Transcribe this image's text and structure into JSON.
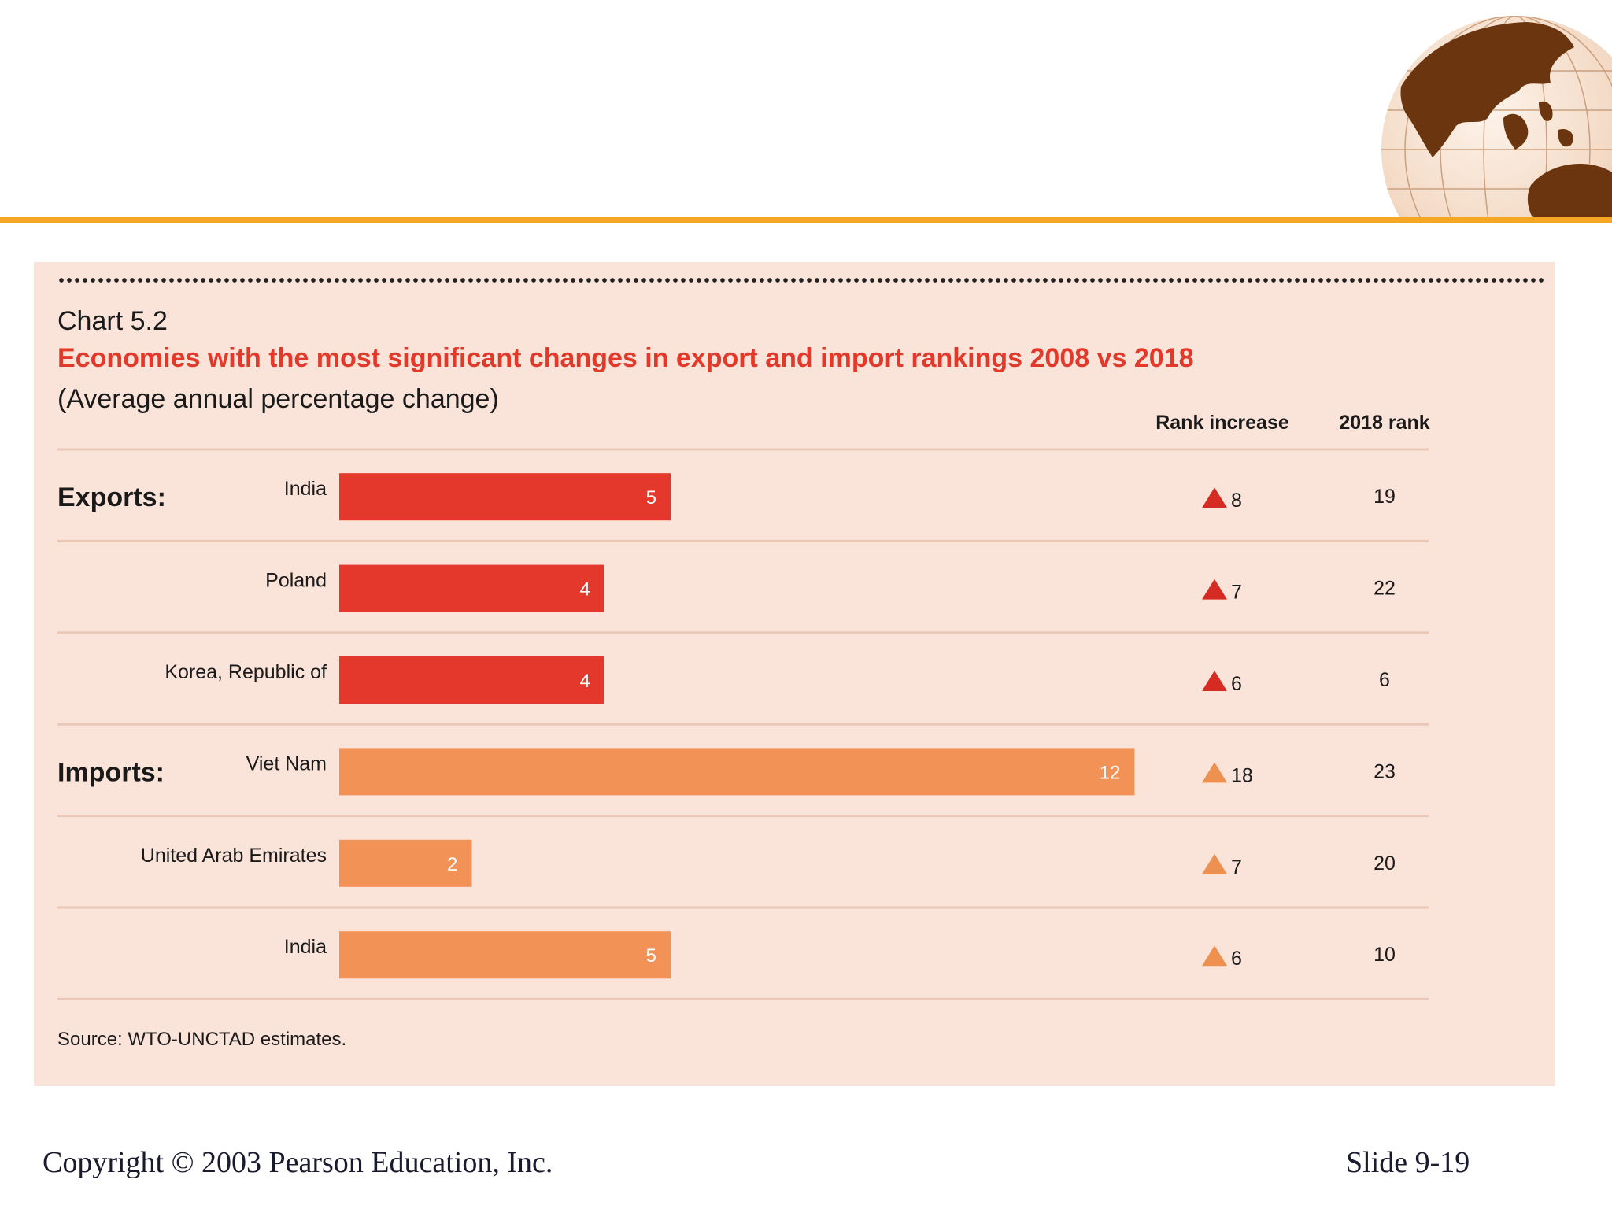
{
  "chart_data": {
    "type": "bar",
    "chart_number": "Chart 5.2",
    "title": "Economies with the most significant changes in export and import rankings 2008 vs 2018",
    "subtitle": "(Average annual percentage change)",
    "column_headers": {
      "rank_increase": "Rank increase",
      "rank_2018": "2018 rank"
    },
    "groups": [
      {
        "label": "Exports:",
        "color": "#e3382b",
        "marker_color": "#d62b22",
        "rows": [
          {
            "country": "India",
            "value": 5,
            "rank_increase": 8,
            "rank_2018": 19
          },
          {
            "country": "Poland",
            "value": 4,
            "rank_increase": 7,
            "rank_2018": 22
          },
          {
            "country": "Korea, Republic of",
            "value": 4,
            "rank_increase": 6,
            "rank_2018": 6
          }
        ]
      },
      {
        "label": "Imports:",
        "color": "#f29257",
        "marker_color": "#ee9150",
        "rows": [
          {
            "country": "Viet Nam",
            "value": 12,
            "rank_increase": 18,
            "rank_2018": 23
          },
          {
            "country": "United Arab Emirates",
            "value": 2,
            "rank_increase": 7,
            "rank_2018": 20
          },
          {
            "country": "India",
            "value": 5,
            "rank_increase": 6,
            "rank_2018": 10
          }
        ]
      }
    ],
    "source": "Source: WTO-UNCTAD estimates.",
    "xlim": [
      0,
      12
    ]
  },
  "footer": {
    "copyright": "Copyright © 2003 Pearson Education, Inc.",
    "slide_number": "Slide 9-19"
  }
}
